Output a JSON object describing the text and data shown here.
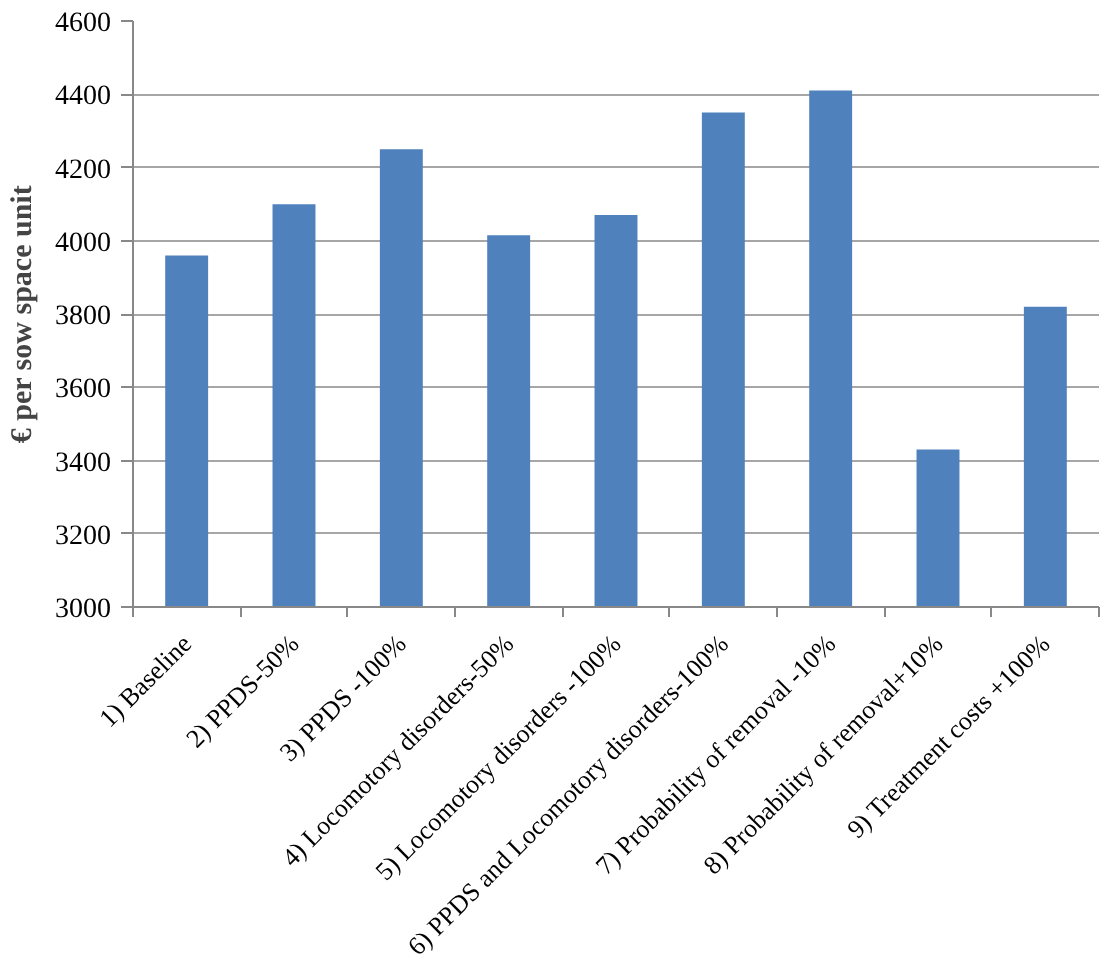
{
  "chart_data": {
    "type": "bar",
    "ylabel": "€ per sow space unit",
    "categories": [
      "1) Baseline",
      "2) PPDS-50%",
      "3) PPDS -100%",
      "4) Locomotory disorders-50%",
      "5) Locomotory disorders -100%",
      "6) PPDS and Locomotory disorders-100%",
      "7) Probability of removal -10%",
      "8) Probability of removal+10%",
      "9) Treatment costs +100%"
    ],
    "values": [
      3960,
      4100,
      4250,
      4015,
      4070,
      4350,
      4410,
      3430,
      3820
    ],
    "color": "#4f81bd",
    "ylim": [
      3000,
      4600
    ],
    "yticks": [
      3000,
      3200,
      3400,
      3600,
      3800,
      4000,
      4200,
      4400,
      4600
    ],
    "grid": "y"
  }
}
